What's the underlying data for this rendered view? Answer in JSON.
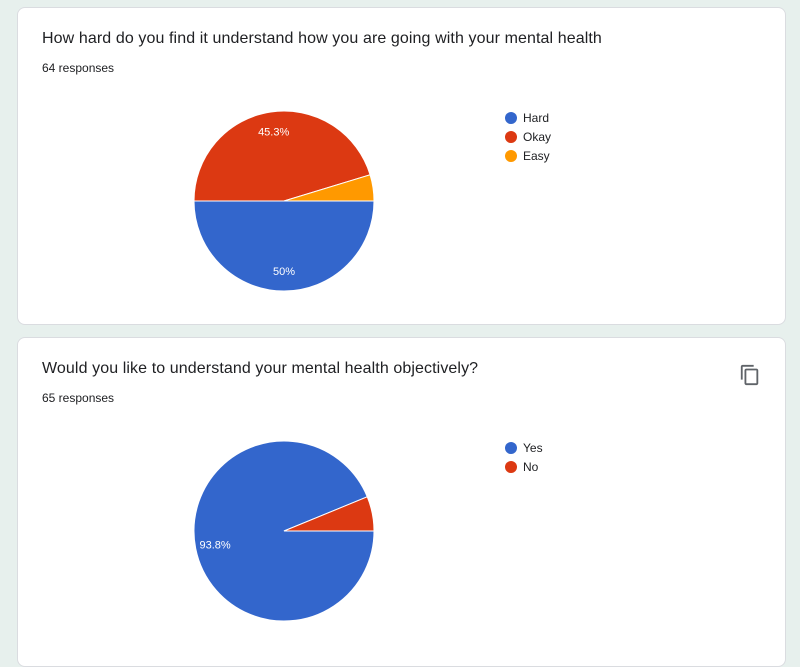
{
  "questions": [
    {
      "title": "How hard do you find it understand how you are going with your mental health",
      "responses": "64 responses",
      "chart_data": {
        "type": "pie",
        "categories": [
          "Hard",
          "Okay",
          "Easy"
        ],
        "values": [
          50,
          45.3,
          4.7
        ],
        "labels": [
          "50%",
          "45.3%",
          ""
        ],
        "colors": [
          "#3366cc",
          "#dc3912",
          "#ff9900"
        ],
        "legend_position": "right"
      }
    },
    {
      "title": "Would you like to understand your mental health objectively?",
      "responses": "65 responses",
      "copy_icon": "copy-icon",
      "chart_data": {
        "type": "pie",
        "categories": [
          "Yes",
          "No"
        ],
        "values": [
          93.8,
          6.2
        ],
        "labels": [
          "93.8%",
          ""
        ],
        "colors": [
          "#3366cc",
          "#dc3912"
        ],
        "legend_position": "right"
      }
    }
  ]
}
